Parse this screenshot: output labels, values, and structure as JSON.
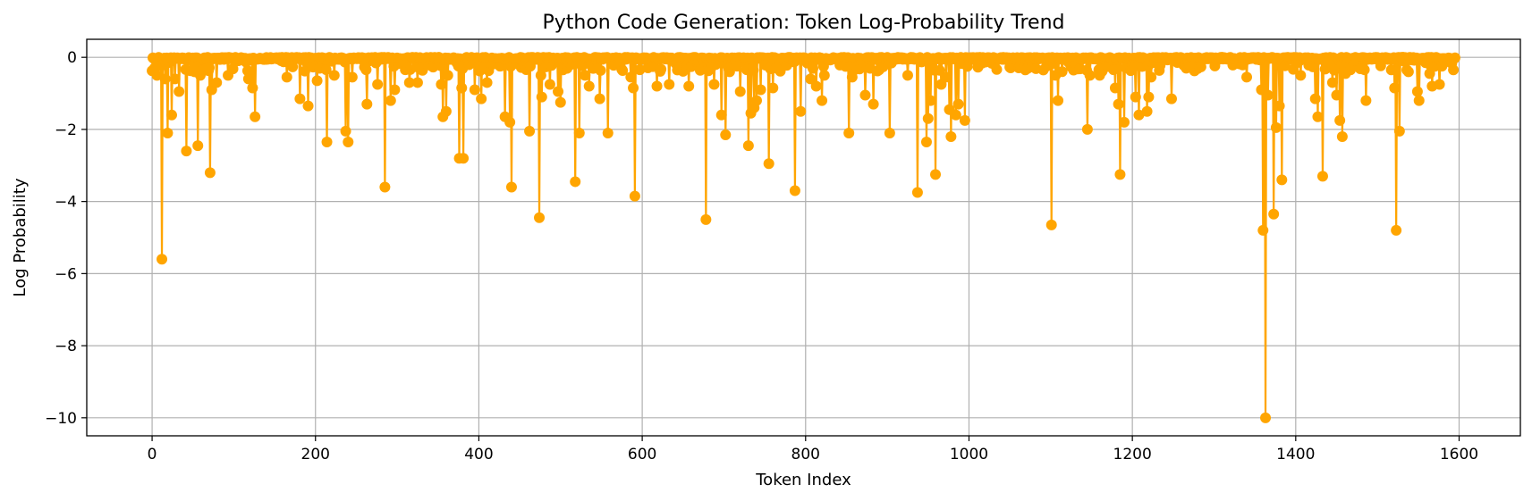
{
  "chart_data": {
    "type": "line",
    "title": "Python Code Generation: Token Log-Probability Trend",
    "xlabel": "Token Index",
    "ylabel": "Log Probability",
    "xlim": [
      -80,
      1675
    ],
    "ylim": [
      -10.5,
      0.5
    ],
    "xticks": [
      0,
      200,
      400,
      600,
      800,
      1000,
      1200,
      1400,
      1600
    ],
    "xtick_labels": [
      "0",
      "200",
      "400",
      "600",
      "800",
      "1000",
      "1200",
      "1400",
      "1600"
    ],
    "yticks": [
      0,
      -2,
      -4,
      -6,
      -8,
      -10
    ],
    "ytick_labels": [
      "0",
      "−2",
      "−4",
      "−6",
      "−8",
      "−10"
    ],
    "grid": true,
    "color": "#FFA500",
    "marker": "circle",
    "token_count": 1596,
    "baseline_value": -0.05,
    "notable_points": [
      {
        "x": 3,
        "y": -0.3
      },
      {
        "x": 6,
        "y": -0.5
      },
      {
        "x": 12,
        "y": -5.6
      },
      {
        "x": 16,
        "y": -0.6
      },
      {
        "x": 19,
        "y": -2.1
      },
      {
        "x": 24,
        "y": -1.6
      },
      {
        "x": 28,
        "y": -0.6
      },
      {
        "x": 33,
        "y": -0.95
      },
      {
        "x": 42,
        "y": -2.6
      },
      {
        "x": 52,
        "y": -0.4
      },
      {
        "x": 56,
        "y": -2.45
      },
      {
        "x": 59,
        "y": -0.5
      },
      {
        "x": 71,
        "y": -3.2
      },
      {
        "x": 73,
        "y": -0.9
      },
      {
        "x": 79,
        "y": -0.7
      },
      {
        "x": 93,
        "y": -0.5
      },
      {
        "x": 118,
        "y": -0.6
      },
      {
        "x": 123,
        "y": -0.85
      },
      {
        "x": 126,
        "y": -1.65
      },
      {
        "x": 165,
        "y": -0.55
      },
      {
        "x": 181,
        "y": -1.15
      },
      {
        "x": 191,
        "y": -1.35
      },
      {
        "x": 202,
        "y": -0.65
      },
      {
        "x": 214,
        "y": -2.35
      },
      {
        "x": 223,
        "y": -0.5
      },
      {
        "x": 237,
        "y": -2.05
      },
      {
        "x": 240,
        "y": -2.35
      },
      {
        "x": 245,
        "y": -0.55
      },
      {
        "x": 263,
        "y": -1.3
      },
      {
        "x": 276,
        "y": -0.75
      },
      {
        "x": 285,
        "y": -3.6
      },
      {
        "x": 292,
        "y": -1.2
      },
      {
        "x": 297,
        "y": -0.9
      },
      {
        "x": 315,
        "y": -0.7
      },
      {
        "x": 325,
        "y": -0.7
      },
      {
        "x": 354,
        "y": -0.75
      },
      {
        "x": 356,
        "y": -1.65
      },
      {
        "x": 360,
        "y": -1.5
      },
      {
        "x": 362,
        "y": -0.5
      },
      {
        "x": 376,
        "y": -2.8
      },
      {
        "x": 379,
        "y": -0.85
      },
      {
        "x": 381,
        "y": -2.8
      },
      {
        "x": 395,
        "y": -0.9
      },
      {
        "x": 403,
        "y": -1.15
      },
      {
        "x": 410,
        "y": -0.7
      },
      {
        "x": 432,
        "y": -1.65
      },
      {
        "x": 438,
        "y": -1.8
      },
      {
        "x": 440,
        "y": -3.6
      },
      {
        "x": 462,
        "y": -2.05
      },
      {
        "x": 474,
        "y": -4.45
      },
      {
        "x": 476,
        "y": -0.5
      },
      {
        "x": 477,
        "y": -1.1
      },
      {
        "x": 487,
        "y": -0.75
      },
      {
        "x": 497,
        "y": -0.95
      },
      {
        "x": 500,
        "y": -1.25
      },
      {
        "x": 518,
        "y": -3.45
      },
      {
        "x": 523,
        "y": -2.1
      },
      {
        "x": 530,
        "y": -0.5
      },
      {
        "x": 535,
        "y": -0.8
      },
      {
        "x": 548,
        "y": -1.15
      },
      {
        "x": 558,
        "y": -2.1
      },
      {
        "x": 586,
        "y": -0.55
      },
      {
        "x": 589,
        "y": -0.85
      },
      {
        "x": 591,
        "y": -3.85
      },
      {
        "x": 618,
        "y": -0.8
      },
      {
        "x": 633,
        "y": -0.75
      },
      {
        "x": 657,
        "y": -0.8
      },
      {
        "x": 678,
        "y": -4.5
      },
      {
        "x": 688,
        "y": -0.75
      },
      {
        "x": 697,
        "y": -1.6
      },
      {
        "x": 702,
        "y": -2.15
      },
      {
        "x": 707,
        "y": -0.4
      },
      {
        "x": 720,
        "y": -0.95
      },
      {
        "x": 730,
        "y": -2.45
      },
      {
        "x": 733,
        "y": -1.55
      },
      {
        "x": 737,
        "y": -1.4
      },
      {
        "x": 740,
        "y": -1.2
      },
      {
        "x": 745,
        "y": -0.9
      },
      {
        "x": 755,
        "y": -2.95
      },
      {
        "x": 760,
        "y": -0.85
      },
      {
        "x": 764,
        "y": -0.3
      },
      {
        "x": 787,
        "y": -3.7
      },
      {
        "x": 794,
        "y": -1.5
      },
      {
        "x": 806,
        "y": -0.6
      },
      {
        "x": 813,
        "y": -0.8
      },
      {
        "x": 820,
        "y": -1.2
      },
      {
        "x": 823,
        "y": -0.5
      },
      {
        "x": 853,
        "y": -2.1
      },
      {
        "x": 857,
        "y": -0.55
      },
      {
        "x": 873,
        "y": -1.05
      },
      {
        "x": 883,
        "y": -1.3
      },
      {
        "x": 890,
        "y": -0.35
      },
      {
        "x": 903,
        "y": -2.1
      },
      {
        "x": 925,
        "y": -0.5
      },
      {
        "x": 937,
        "y": -3.75
      },
      {
        "x": 948,
        "y": -2.35
      },
      {
        "x": 950,
        "y": -1.7
      },
      {
        "x": 953,
        "y": -1.2
      },
      {
        "x": 959,
        "y": -3.25
      },
      {
        "x": 966,
        "y": -0.75
      },
      {
        "x": 972,
        "y": -0.55
      },
      {
        "x": 976,
        "y": -1.45
      },
      {
        "x": 978,
        "y": -2.2
      },
      {
        "x": 984,
        "y": -1.6
      },
      {
        "x": 987,
        "y": -1.3
      },
      {
        "x": 995,
        "y": -1.75
      },
      {
        "x": 1069,
        "y": -0.35
      },
      {
        "x": 1101,
        "y": -4.65
      },
      {
        "x": 1106,
        "y": -0.5
      },
      {
        "x": 1109,
        "y": -1.2
      },
      {
        "x": 1145,
        "y": -2.0
      },
      {
        "x": 1148,
        "y": -0.5
      },
      {
        "x": 1160,
        "y": -0.5
      },
      {
        "x": 1179,
        "y": -0.85
      },
      {
        "x": 1183,
        "y": -1.3
      },
      {
        "x": 1185,
        "y": -3.25
      },
      {
        "x": 1190,
        "y": -1.8
      },
      {
        "x": 1204,
        "y": -1.1
      },
      {
        "x": 1208,
        "y": -1.6
      },
      {
        "x": 1218,
        "y": -1.5
      },
      {
        "x": 1220,
        "y": -1.1
      },
      {
        "x": 1223,
        "y": -0.55
      },
      {
        "x": 1248,
        "y": -1.15
      },
      {
        "x": 1340,
        "y": -0.55
      },
      {
        "x": 1358,
        "y": -0.9
      },
      {
        "x": 1360,
        "y": -4.8
      },
      {
        "x": 1363,
        "y": -10.0
      },
      {
        "x": 1366,
        "y": -1.05
      },
      {
        "x": 1373,
        "y": -4.35
      },
      {
        "x": 1376,
        "y": -1.95
      },
      {
        "x": 1380,
        "y": -1.35
      },
      {
        "x": 1383,
        "y": -3.4
      },
      {
        "x": 1406,
        "y": -0.5
      },
      {
        "x": 1424,
        "y": -1.15
      },
      {
        "x": 1427,
        "y": -1.65
      },
      {
        "x": 1433,
        "y": -3.3
      },
      {
        "x": 1445,
        "y": -0.7
      },
      {
        "x": 1450,
        "y": -1.05
      },
      {
        "x": 1454,
        "y": -1.75
      },
      {
        "x": 1457,
        "y": -2.2
      },
      {
        "x": 1461,
        "y": -0.45
      },
      {
        "x": 1486,
        "y": -1.2
      },
      {
        "x": 1517,
        "y": -0.35
      },
      {
        "x": 1521,
        "y": -0.85
      },
      {
        "x": 1523,
        "y": -4.8
      },
      {
        "x": 1527,
        "y": -2.05
      },
      {
        "x": 1538,
        "y": -0.4
      },
      {
        "x": 1549,
        "y": -0.95
      },
      {
        "x": 1551,
        "y": -1.2
      },
      {
        "x": 1564,
        "y": -0.45
      },
      {
        "x": 1567,
        "y": -0.8
      },
      {
        "x": 1576,
        "y": -0.75
      },
      {
        "x": 1593,
        "y": -0.35
      }
    ]
  }
}
